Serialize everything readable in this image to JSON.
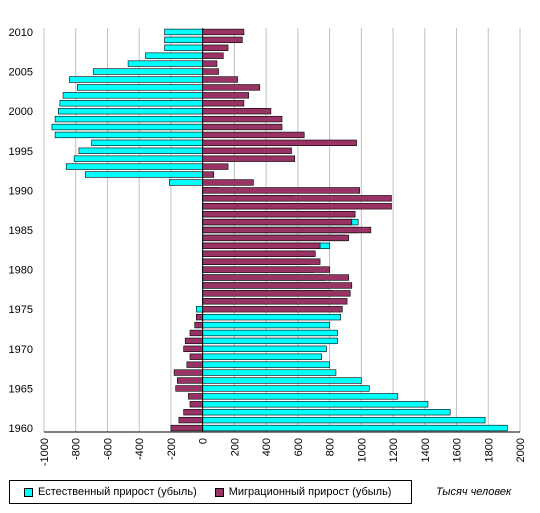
{
  "chart_data": {
    "type": "bar",
    "orientation": "horizontal",
    "layout": "diverging",
    "y_tick_labels": [
      "1960",
      "1965",
      "1970",
      "1975",
      "1980",
      "1985",
      "1990",
      "1995",
      "2000",
      "2005",
      "2010"
    ],
    "x_tick_labels": [
      "-1000",
      "-800",
      "-600",
      "-400",
      "-200",
      "0",
      "200",
      "400",
      "600",
      "800",
      "1000",
      "1200",
      "1400",
      "1600",
      "1800",
      "2000"
    ],
    "xlim": [
      -1000,
      2000
    ],
    "ylim": [
      1959.5,
      2010.5
    ],
    "grid": "vertical",
    "legend_position": "bottom-left",
    "unit_label": "Тысяч человек",
    "years": [
      1960,
      1961,
      1962,
      1963,
      1964,
      1965,
      1966,
      1967,
      1968,
      1969,
      1970,
      1971,
      1972,
      1973,
      1974,
      1975,
      1976,
      1977,
      1978,
      1979,
      1980,
      1981,
      1982,
      1983,
      1984,
      1985,
      1986,
      1987,
      1988,
      1989,
      1990,
      1991,
      1992,
      1993,
      1994,
      1995,
      1996,
      1997,
      1998,
      1999,
      2000,
      2001,
      2002,
      2003,
      2004,
      2005,
      2006,
      2007,
      2008,
      2009,
      2010
    ],
    "series": [
      {
        "name": "Естественный прирост (убыль)",
        "color": "#00ffff",
        "values": [
          1920,
          1780,
          1560,
          1420,
          1230,
          1050,
          1000,
          840,
          800,
          750,
          780,
          850,
          850,
          800,
          870,
          -40,
          800,
          820,
          800,
          770,
          700,
          670,
          700,
          800,
          900,
          980,
          980,
          960,
          780,
          570,
          100,
          -210,
          -740,
          -860,
          -810,
          -780,
          -700,
          -930,
          -950,
          -930,
          -910,
          -900,
          -880,
          -790,
          -840,
          -690,
          -470,
          -360,
          -240,
          -240,
          -240
        ]
      },
      {
        "name": "Миграционный прирост (убыль)",
        "color": "#993366",
        "values": [
          -200,
          -150,
          -120,
          -80,
          -90,
          -170,
          -160,
          -180,
          -100,
          -80,
          -120,
          -110,
          -80,
          -50,
          -40,
          880,
          910,
          930,
          940,
          920,
          800,
          740,
          710,
          740,
          920,
          1060,
          940,
          960,
          1190,
          1190,
          990,
          320,
          70,
          160,
          580,
          560,
          970,
          640,
          500,
          500,
          430,
          260,
          290,
          360,
          220,
          100,
          90,
          130,
          160,
          250,
          260
        ]
      }
    ]
  }
}
